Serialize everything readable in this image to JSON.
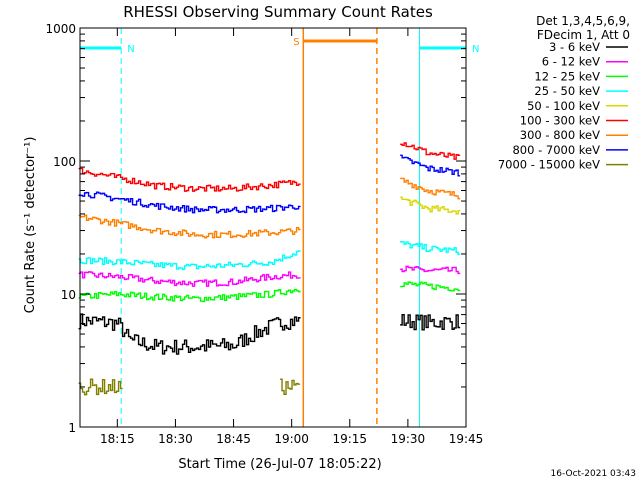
{
  "chart_data": {
    "type": "line",
    "title": "RHESSI Observing Summary Count Rates",
    "xlabel": "Start Time (26-Jul-07 18:05:22)",
    "ylabel": "Count Rate (s⁻¹ detector⁻¹)",
    "yscale": "log",
    "ylim": [
      1,
      1000
    ],
    "xlim": [
      "18:05:22",
      "19:45:00"
    ],
    "x_ticks": [
      "18:15",
      "18:30",
      "18:45",
      "19:00",
      "19:15",
      "19:30",
      "19:45"
    ],
    "y_ticks": [
      "1",
      "10",
      "100",
      "1000"
    ],
    "legend_header": [
      "Det 1,3,4,5,6,9,",
      "FDecim 1, Att 0"
    ],
    "legend_position": "right",
    "footer": "16-Oct-2021 03:43",
    "series": [
      {
        "name": "3 - 6 keV",
        "color": "#000000",
        "segments": [
          {
            "times": [
              "18:05",
              "18:10",
              "18:15",
              "18:18",
              "18:25",
              "18:35",
              "18:45",
              "18:52",
              "18:58",
              "19:02"
            ],
            "values": [
              6.3,
              6.2,
              6.0,
              4.5,
              4.0,
              4.0,
              4.1,
              5.3,
              6.2,
              6.3
            ]
          },
          {
            "times": [
              "19:28",
              "19:35",
              "19:43"
            ],
            "values": [
              6.3,
              6.1,
              6.2
            ]
          }
        ]
      },
      {
        "name": "6 - 12 keV",
        "color": "#ff00ff",
        "segments": [
          {
            "times": [
              "18:05",
              "18:15",
              "18:25",
              "18:35",
              "18:45",
              "18:55",
              "19:02"
            ],
            "values": [
              14,
              13.5,
              12.5,
              12,
              12.3,
              13.5,
              14
            ]
          },
          {
            "times": [
              "19:28",
              "19:35",
              "19:43"
            ],
            "values": [
              15.5,
              15,
              15
            ]
          }
        ]
      },
      {
        "name": "12 - 25 keV",
        "color": "#00ff00",
        "segments": [
          {
            "times": [
              "18:05",
              "18:15",
              "18:25",
              "18:35",
              "18:45",
              "18:55",
              "19:02"
            ],
            "values": [
              9.5,
              10,
              9.5,
              9.2,
              9.5,
              10,
              11
            ]
          },
          {
            "times": [
              "19:28",
              "19:35",
              "19:43"
            ],
            "values": [
              12,
              11.5,
              11
            ]
          }
        ]
      },
      {
        "name": "25 - 50 keV",
        "color": "#00ffff",
        "segments": [
          {
            "times": [
              "18:05",
              "18:15",
              "18:25",
              "18:35",
              "18:45",
              "18:55",
              "19:02"
            ],
            "values": [
              18,
              17.5,
              16.5,
              16,
              16.5,
              17.5,
              21
            ]
          },
          {
            "times": [
              "19:28",
              "19:35",
              "19:43"
            ],
            "values": [
              24,
              22,
              21
            ]
          }
        ]
      },
      {
        "name": "50 - 100 keV",
        "color": "#d8d800",
        "segments": [
          {
            "times": [
              "19:28",
              "19:35",
              "19:43"
            ],
            "values": [
              52,
              44,
              42
            ]
          }
        ]
      },
      {
        "name": "100 - 300 keV",
        "color": "#ff0000",
        "segments": [
          {
            "times": [
              "18:05",
              "18:15",
              "18:25",
              "18:35",
              "18:45",
              "18:55",
              "19:02"
            ],
            "values": [
              85,
              75,
              65,
              62,
              62,
              66,
              70
            ]
          },
          {
            "times": [
              "19:28",
              "19:35",
              "19:43"
            ],
            "values": [
              140,
              115,
              105
            ]
          }
        ]
      },
      {
        "name": "300 - 800 keV",
        "color": "#ff8000",
        "segments": [
          {
            "times": [
              "18:05",
              "18:15",
              "18:25",
              "18:35",
              "18:45",
              "18:55",
              "19:02"
            ],
            "values": [
              38,
              34,
              30,
              28,
              28,
              29,
              30
            ]
          },
          {
            "times": [
              "19:28",
              "19:35",
              "19:43"
            ],
            "values": [
              72,
              60,
              55
            ]
          }
        ]
      },
      {
        "name": "800 - 7000 keV",
        "color": "#0000ff",
        "segments": [
          {
            "times": [
              "18:05",
              "18:15",
              "18:25",
              "18:35",
              "18:45",
              "18:55",
              "19:02"
            ],
            "values": [
              58,
              52,
              46,
              43,
              43,
              44,
              46
            ]
          },
          {
            "times": [
              "19:28",
              "19:35",
              "19:43"
            ],
            "values": [
              105,
              88,
              82
            ]
          }
        ]
      },
      {
        "name": "7000 - 15000 keV",
        "color": "#808000",
        "segments": [
          {
            "times": [
              "18:05",
              "18:10",
              "18:16"
            ],
            "values": [
              2,
              2,
              2
            ]
          },
          {
            "times": [
              "18:57",
              "19:02"
            ],
            "values": [
              2,
              2
            ]
          }
        ]
      }
    ],
    "annotations": [
      {
        "label": "N",
        "color": "#00ffff",
        "start": "18:05:22",
        "end": "18:16:00",
        "kind": "night"
      },
      {
        "label": "N",
        "color": "#00ffff",
        "start": "19:33:00",
        "end": "19:45:00",
        "kind": "night"
      },
      {
        "label": "S",
        "color": "#ff8000",
        "start": "19:03:00",
        "end": "19:22:00",
        "kind": "saa"
      }
    ],
    "grid": false
  }
}
